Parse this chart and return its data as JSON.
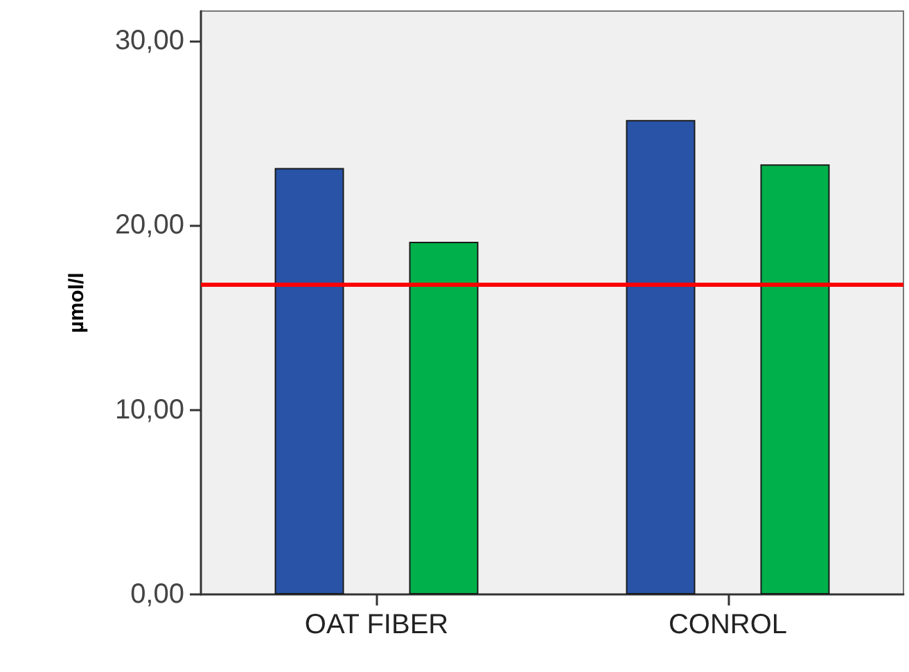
{
  "chart_data": {
    "type": "bar",
    "ylabel": "µmol/l",
    "categories": [
      "OAT FIBER",
      "CONROL"
    ],
    "series": [
      {
        "color": "#2953a6",
        "values": [
          23.1,
          25.7
        ]
      },
      {
        "color": "#00b04a",
        "values": [
          19.1,
          23.3
        ]
      }
    ],
    "ylim": [
      0,
      31.6
    ],
    "yticks": [
      {
        "value": 0,
        "label": "0,00"
      },
      {
        "value": 10,
        "label": "10,00"
      },
      {
        "value": 20,
        "label": "20,00"
      },
      {
        "value": 30,
        "label": "30,00"
      }
    ],
    "ref_lines": [
      {
        "axis": "y",
        "value": 16.8,
        "color": "#ff0000"
      }
    ],
    "grid": false
  }
}
